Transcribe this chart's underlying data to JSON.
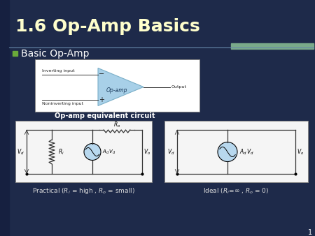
{
  "title": "1.6 Op-Amp Basics",
  "title_color": "#FFFFCC",
  "title_fontsize": 18,
  "bg_color": "#1e2a4a",
  "sidebar_color": "#162040",
  "bullet_color": "#6aaa3a",
  "bullet_text": "Basic Op-Amp",
  "bullet_fontsize": 10,
  "opamp_label": "Op-amp",
  "output_label": "Output",
  "inverting_label": "Inverting input",
  "noninverting_label": "Noninverting input",
  "equiv_label": "Op-amp equivalent circuit",
  "slide_number": "1",
  "triangle_color": "#a8d0e8",
  "triangle_edge": "#7aafc8",
  "circuit_src_color": "#b8d8ee",
  "accent_bar_color": "#7aaa8a",
  "line_divider_color": "#6688aa",
  "wire_color": "#333333",
  "text_dark": "#222222",
  "bottom_label_color": "#dddddd",
  "box_edge": "#888888"
}
